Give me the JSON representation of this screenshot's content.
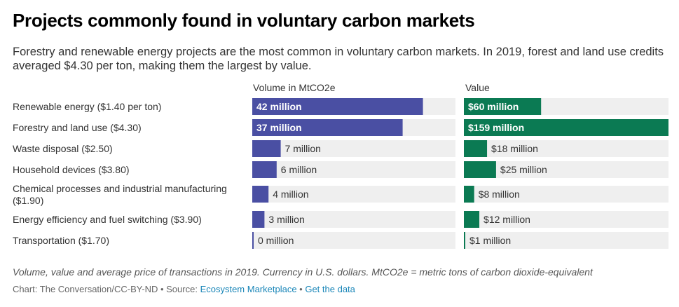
{
  "title": "Projects commonly found in voluntary carbon markets",
  "subtitle": "Forestry and renewable energy projects are the most common in voluntary carbon markets. In 2019, forest and land use credits averaged $4.30 per ton, making them the largest by value.",
  "colors": {
    "volume": "#4a4fa3",
    "value": "#0b7a53",
    "track": "#efefef"
  },
  "chart_data": {
    "type": "bar",
    "orientation": "horizontal",
    "categories": [
      "Renewable energy ($1.40 per ton)",
      "Forestry and land use ($4.30)",
      "Waste disposal ($2.50)",
      "Household devices ($3.80)",
      "Chemical processes and industrial manufacturing ($1.90)",
      "Energy efficiency and fuel switching ($3.90)",
      "Transportation ($1.70)"
    ],
    "series": [
      {
        "name": "Volume in MtCO2e",
        "values": [
          42,
          37,
          7,
          6,
          4,
          3,
          0.3
        ],
        "labels": [
          "42 million",
          "37 million",
          "7 million",
          "6 million",
          "4 million",
          "3 million",
          "0 million"
        ],
        "max": 50
      },
      {
        "name": "Value",
        "values": [
          60,
          159,
          18,
          25,
          8,
          12,
          1
        ],
        "labels": [
          "$60 million",
          "$159 million",
          "$18 million",
          "$25 million",
          "$8 million",
          "$12 million",
          "$1 million"
        ],
        "max": 159
      }
    ],
    "grid": false,
    "legend": "none"
  },
  "footer": {
    "note": "Volume, value and average price of transactions in 2019. Currency in U.S. dollars. MtCO2e = metric tons of carbon dioxide-equivalent",
    "credit_prefix": "Chart: The Conversation/CC-BY-ND • Source: ",
    "source_link": "Ecosystem Marketplace",
    "separator": " • ",
    "data_link": "Get the data"
  }
}
